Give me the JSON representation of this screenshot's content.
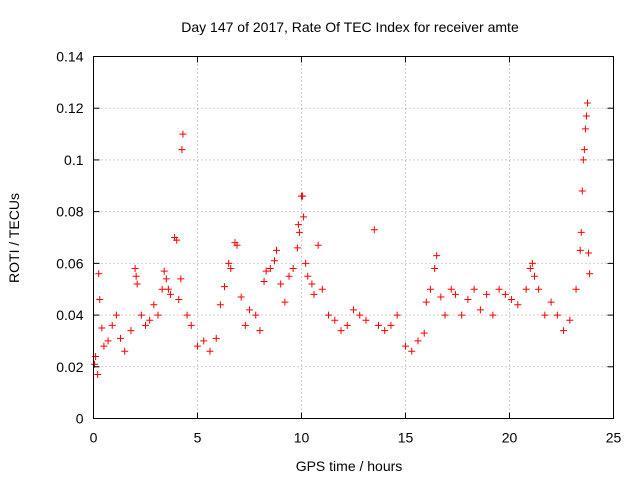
{
  "chart_data": {
    "type": "scatter",
    "title": "Day 147 of 2017, Rate Of TEC Index for receiver amte",
    "xlabel": "GPS time / hours",
    "ylabel": "ROTI / TECUs",
    "xlim": [
      0,
      25
    ],
    "ylim": [
      0,
      0.14
    ],
    "xticks": [
      0,
      5,
      10,
      15,
      20,
      25
    ],
    "xtick_labels": [
      "0",
      "5",
      "10",
      "15",
      "20",
      "25"
    ],
    "yticks": [
      0,
      0.02,
      0.04,
      0.06,
      0.08,
      0.1,
      0.12,
      0.14
    ],
    "ytick_labels": [
      "0",
      "0.02",
      "0.04",
      "0.06",
      "0.08",
      "0.1",
      "0.12",
      "0.14"
    ],
    "grid": true,
    "marker": "+",
    "color": "#ff0000",
    "series": [
      {
        "name": "ROTI",
        "points": [
          [
            0.05,
            0.021
          ],
          [
            0.1,
            0.024
          ],
          [
            0.2,
            0.017
          ],
          [
            0.25,
            0.056
          ],
          [
            0.3,
            0.046
          ],
          [
            0.4,
            0.035
          ],
          [
            0.5,
            0.028
          ],
          [
            0.7,
            0.03
          ],
          [
            0.9,
            0.036
          ],
          [
            1.1,
            0.04
          ],
          [
            1.3,
            0.031
          ],
          [
            1.5,
            0.026
          ],
          [
            1.8,
            0.034
          ],
          [
            2.0,
            0.058
          ],
          [
            2.05,
            0.055
          ],
          [
            2.1,
            0.052
          ],
          [
            2.3,
            0.04
          ],
          [
            2.5,
            0.036
          ],
          [
            2.7,
            0.038
          ],
          [
            2.9,
            0.044
          ],
          [
            3.1,
            0.04
          ],
          [
            3.3,
            0.05
          ],
          [
            3.4,
            0.057
          ],
          [
            3.5,
            0.054
          ],
          [
            3.6,
            0.05
          ],
          [
            3.7,
            0.048
          ],
          [
            3.9,
            0.07
          ],
          [
            4.0,
            0.069
          ],
          [
            4.1,
            0.046
          ],
          [
            4.2,
            0.054
          ],
          [
            4.25,
            0.104
          ],
          [
            4.3,
            0.11
          ],
          [
            4.5,
            0.04
          ],
          [
            4.7,
            0.036
          ],
          [
            5.0,
            0.028
          ],
          [
            5.3,
            0.03
          ],
          [
            5.6,
            0.026
          ],
          [
            5.9,
            0.031
          ],
          [
            6.1,
            0.044
          ],
          [
            6.3,
            0.051
          ],
          [
            6.5,
            0.06
          ],
          [
            6.6,
            0.058
          ],
          [
            6.8,
            0.068
          ],
          [
            6.9,
            0.067
          ],
          [
            7.1,
            0.047
          ],
          [
            7.3,
            0.036
          ],
          [
            7.5,
            0.042
          ],
          [
            7.8,
            0.04
          ],
          [
            8.0,
            0.034
          ],
          [
            8.2,
            0.053
          ],
          [
            8.3,
            0.057
          ],
          [
            8.5,
            0.058
          ],
          [
            8.7,
            0.061
          ],
          [
            8.8,
            0.065
          ],
          [
            9.0,
            0.052
          ],
          [
            9.2,
            0.045
          ],
          [
            9.4,
            0.055
          ],
          [
            9.6,
            0.058
          ],
          [
            9.8,
            0.066
          ],
          [
            9.85,
            0.075
          ],
          [
            9.9,
            0.072
          ],
          [
            10.0,
            0.086
          ],
          [
            10.05,
            0.086
          ],
          [
            10.1,
            0.078
          ],
          [
            10.2,
            0.06
          ],
          [
            10.3,
            0.055
          ],
          [
            10.5,
            0.052
          ],
          [
            10.6,
            0.048
          ],
          [
            10.8,
            0.067
          ],
          [
            11.0,
            0.05
          ],
          [
            11.3,
            0.04
          ],
          [
            11.6,
            0.038
          ],
          [
            11.9,
            0.034
          ],
          [
            12.2,
            0.036
          ],
          [
            12.5,
            0.042
          ],
          [
            12.8,
            0.04
          ],
          [
            13.1,
            0.038
          ],
          [
            13.5,
            0.073
          ],
          [
            13.7,
            0.036
          ],
          [
            14.0,
            0.034
          ],
          [
            14.3,
            0.036
          ],
          [
            14.6,
            0.04
          ],
          [
            15.0,
            0.028
          ],
          [
            15.3,
            0.026
          ],
          [
            15.6,
            0.03
          ],
          [
            15.9,
            0.033
          ],
          [
            16.0,
            0.045
          ],
          [
            16.2,
            0.05
          ],
          [
            16.4,
            0.058
          ],
          [
            16.5,
            0.063
          ],
          [
            16.7,
            0.047
          ],
          [
            16.9,
            0.04
          ],
          [
            17.2,
            0.05
          ],
          [
            17.4,
            0.048
          ],
          [
            17.7,
            0.04
          ],
          [
            18.0,
            0.046
          ],
          [
            18.3,
            0.05
          ],
          [
            18.6,
            0.042
          ],
          [
            18.9,
            0.048
          ],
          [
            19.2,
            0.04
          ],
          [
            19.5,
            0.05
          ],
          [
            19.8,
            0.048
          ],
          [
            20.1,
            0.046
          ],
          [
            20.4,
            0.044
          ],
          [
            20.8,
            0.05
          ],
          [
            21.0,
            0.058
          ],
          [
            21.1,
            0.06
          ],
          [
            21.2,
            0.055
          ],
          [
            21.4,
            0.05
          ],
          [
            21.7,
            0.04
          ],
          [
            22.0,
            0.045
          ],
          [
            22.3,
            0.04
          ],
          [
            22.6,
            0.034
          ],
          [
            22.9,
            0.038
          ],
          [
            23.2,
            0.05
          ],
          [
            23.4,
            0.065
          ],
          [
            23.45,
            0.072
          ],
          [
            23.5,
            0.088
          ],
          [
            23.55,
            0.1
          ],
          [
            23.6,
            0.104
          ],
          [
            23.65,
            0.112
          ],
          [
            23.7,
            0.117
          ],
          [
            23.75,
            0.122
          ],
          [
            23.8,
            0.064
          ],
          [
            23.85,
            0.056
          ]
        ]
      }
    ]
  }
}
